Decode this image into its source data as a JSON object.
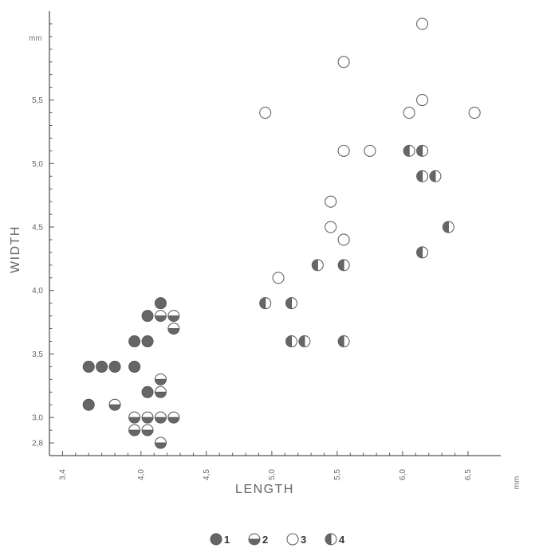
{
  "chart_data": {
    "type": "scatter",
    "xlabel": "LENGTH",
    "ylabel": "WIDTH",
    "x_unit": "mm",
    "y_unit": "mm",
    "xlim": [
      3.3,
      6.75
    ],
    "ylim": [
      2.7,
      6.2
    ],
    "x_ticks": [
      3.4,
      3.5,
      3.6,
      3.7,
      3.8,
      3.9,
      4.0,
      4.1,
      4.2,
      4.3,
      4.4,
      4.5,
      4.6,
      4.7,
      4.8,
      4.9,
      5.0,
      5.1,
      5.2,
      5.3,
      5.4,
      5.5,
      5.6,
      5.7,
      5.8,
      5.9,
      6.0,
      6.1,
      6.2,
      6.3,
      6.4,
      6.5
    ],
    "x_tick_labels": [
      {
        "value": 3.4,
        "label": "3,4"
      },
      {
        "value": 4.0,
        "label": "4,0"
      },
      {
        "value": 4.5,
        "label": "4,5"
      },
      {
        "value": 5.0,
        "label": "5,0"
      },
      {
        "value": 5.5,
        "label": "5,5"
      },
      {
        "value": 6.0,
        "label": "6,0"
      },
      {
        "value": 6.5,
        "label": "6,5"
      }
    ],
    "y_ticks": [
      2.8,
      2.9,
      3.0,
      3.1,
      3.2,
      3.3,
      3.4,
      3.5,
      3.6,
      3.7,
      3.8,
      3.9,
      4.0,
      4.1,
      4.2,
      4.3,
      4.4,
      4.5,
      4.6,
      4.7,
      4.8,
      4.9,
      5.0,
      5.1,
      5.2,
      5.3,
      5.4,
      5.5,
      5.6,
      5.7,
      5.8,
      5.9,
      6.0,
      6.1
    ],
    "y_tick_labels": [
      {
        "value": 2.8,
        "label": "2,8"
      },
      {
        "value": 3.0,
        "label": "3,0"
      },
      {
        "value": 3.5,
        "label": "3,5"
      },
      {
        "value": 4.0,
        "label": "4,0"
      },
      {
        "value": 4.5,
        "label": "4,5"
      },
      {
        "value": 5.0,
        "label": "5,0"
      },
      {
        "value": 5.5,
        "label": "5,5"
      }
    ],
    "grid": false,
    "legend_position": "bottom-center",
    "colors": {
      "fill": "#666666",
      "stroke": "#555555",
      "axis": "#555555"
    },
    "series": [
      {
        "name": "1",
        "marker": "filled-circle",
        "points": [
          [
            3.6,
            3.4
          ],
          [
            3.7,
            3.4
          ],
          [
            3.8,
            3.4
          ],
          [
            3.6,
            3.1
          ],
          [
            3.95,
            3.4
          ],
          [
            3.95,
            3.6
          ],
          [
            4.05,
            3.6
          ],
          [
            4.05,
            3.8
          ],
          [
            4.15,
            3.9
          ],
          [
            4.05,
            3.2
          ]
        ]
      },
      {
        "name": "2",
        "marker": "bottom-half-filled-circle",
        "points": [
          [
            3.8,
            3.1
          ],
          [
            3.95,
            3.0
          ],
          [
            4.05,
            3.0
          ],
          [
            4.15,
            3.0
          ],
          [
            4.25,
            3.0
          ],
          [
            3.95,
            2.9
          ],
          [
            4.05,
            2.9
          ],
          [
            4.15,
            2.8
          ],
          [
            4.15,
            3.2
          ],
          [
            4.15,
            3.3
          ],
          [
            4.15,
            3.8
          ],
          [
            4.25,
            3.8
          ],
          [
            4.25,
            3.7
          ]
        ]
      },
      {
        "name": "3",
        "marker": "open-circle",
        "points": [
          [
            4.95,
            5.4
          ],
          [
            5.05,
            4.1
          ],
          [
            5.45,
            4.7
          ],
          [
            5.45,
            4.5
          ],
          [
            5.55,
            4.4
          ],
          [
            5.55,
            5.1
          ],
          [
            5.75,
            5.1
          ],
          [
            5.55,
            5.8
          ],
          [
            6.05,
            5.4
          ],
          [
            6.15,
            5.5
          ],
          [
            6.15,
            6.1
          ],
          [
            6.55,
            5.4
          ]
        ]
      },
      {
        "name": "4",
        "marker": "left-half-filled-circle",
        "points": [
          [
            4.95,
            3.9
          ],
          [
            5.15,
            3.9
          ],
          [
            5.15,
            3.6
          ],
          [
            5.25,
            3.6
          ],
          [
            5.55,
            3.6
          ],
          [
            5.35,
            4.2
          ],
          [
            5.55,
            4.2
          ],
          [
            6.05,
            5.1
          ],
          [
            6.15,
            5.1
          ],
          [
            6.15,
            4.9
          ],
          [
            6.25,
            4.9
          ],
          [
            6.15,
            4.3
          ],
          [
            6.35,
            4.5
          ]
        ]
      }
    ]
  }
}
